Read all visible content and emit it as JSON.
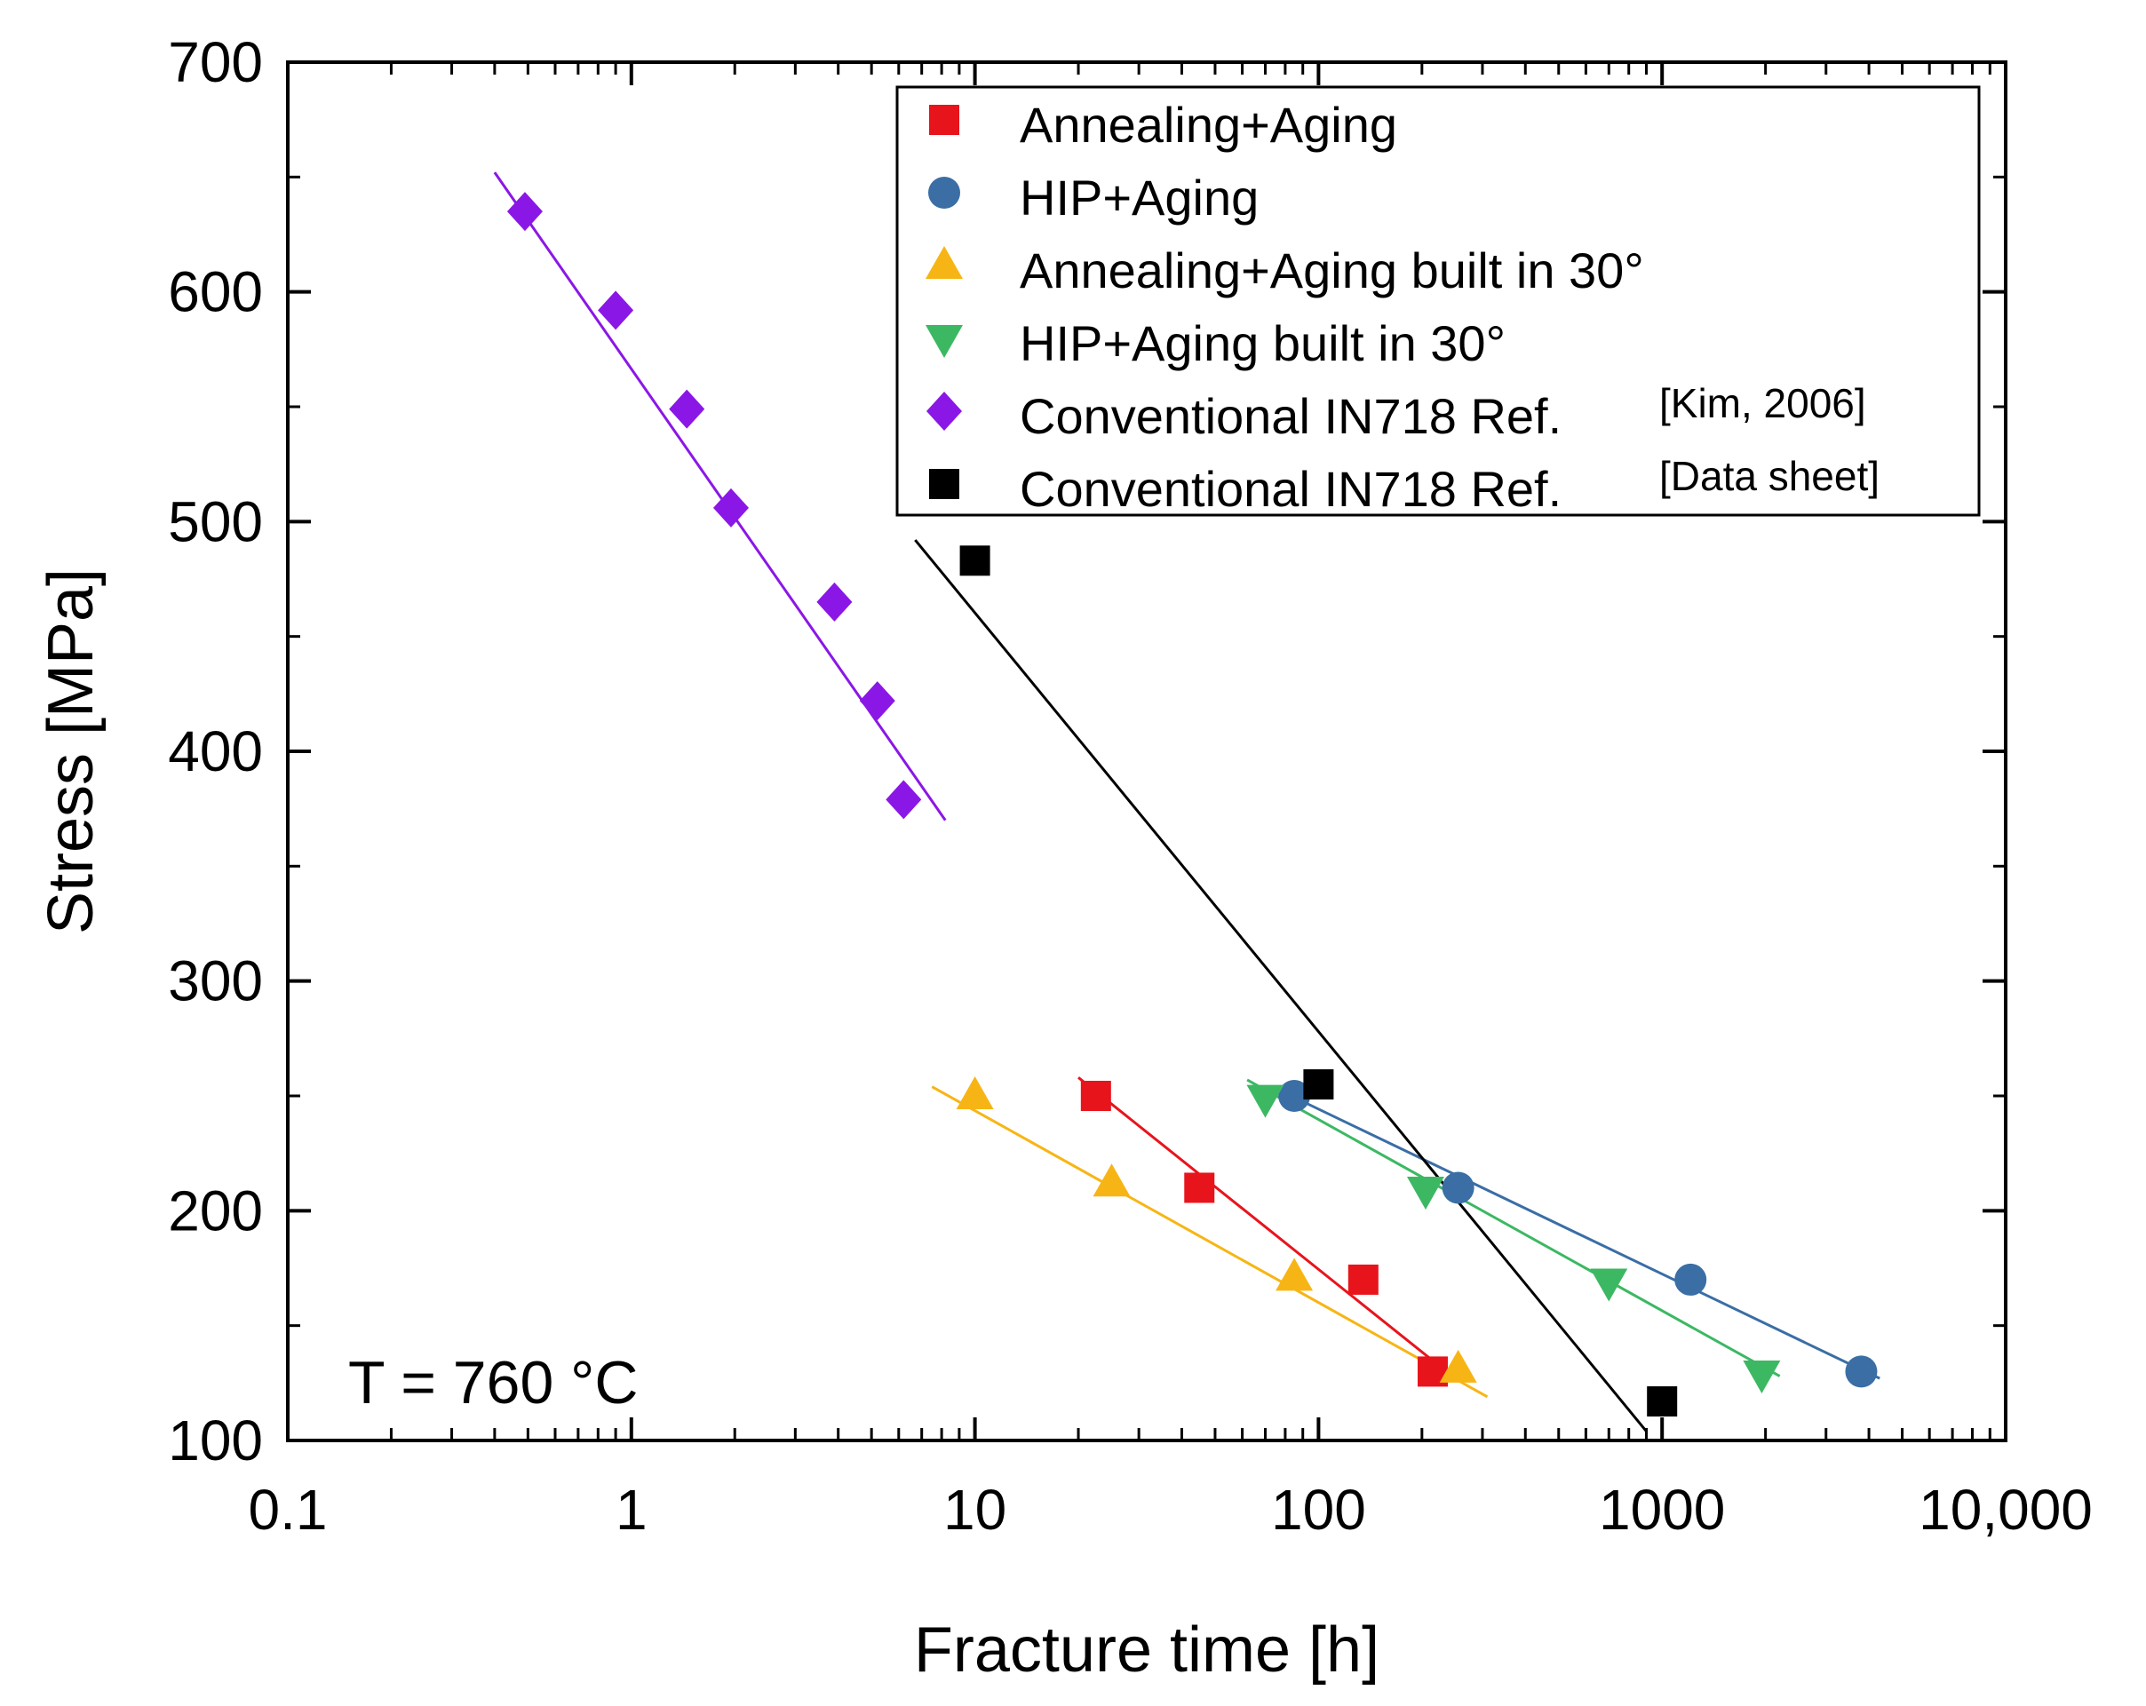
{
  "chart_data": {
    "type": "scatter",
    "xlabel": "Fracture time [h]",
    "ylabel": "Stress [MPa]",
    "xscale": "log",
    "xlim": [
      0.1,
      10000
    ],
    "ylim": [
      100,
      700
    ],
    "xticks": [
      {
        "value": 0.1,
        "label": "0.1"
      },
      {
        "value": 1,
        "label": "1"
      },
      {
        "value": 10,
        "label": "10"
      },
      {
        "value": 100,
        "label": "100"
      },
      {
        "value": 1000,
        "label": "1000"
      },
      {
        "value": 10000,
        "label": "10,000"
      }
    ],
    "yticks": [
      {
        "value": 100,
        "label": "100"
      },
      {
        "value": 200,
        "label": "200"
      },
      {
        "value": 300,
        "label": "300"
      },
      {
        "value": 400,
        "label": "400"
      },
      {
        "value": 500,
        "label": "500"
      },
      {
        "value": 600,
        "label": "600"
      },
      {
        "value": 700,
        "label": "700"
      }
    ],
    "legend_position": "top-right",
    "annotation": "T = 760 °C",
    "series": [
      {
        "name": "Annealing+Aging",
        "marker": "square",
        "color": "#e8141c",
        "points": [
          [
            22.5,
            250
          ],
          [
            45,
            210
          ],
          [
            135,
            170
          ],
          [
            215,
            130
          ]
        ],
        "fit_line": [
          [
            20,
            258
          ],
          [
            245,
            128
          ]
        ]
      },
      {
        "name": "HIP+Aging",
        "marker": "circle",
        "color": "#3a6ea5",
        "points": [
          [
            85,
            250
          ],
          [
            255,
            210
          ],
          [
            1210,
            170
          ],
          [
            3800,
            130
          ]
        ],
        "fit_line": [
          [
            78,
            252
          ],
          [
            4300,
            127
          ]
        ]
      },
      {
        "name": "Annealing+Aging built in 30°",
        "marker": "triangle-up",
        "color": "#f7b515",
        "points": [
          [
            10,
            250
          ],
          [
            25,
            212
          ],
          [
            85,
            171
          ],
          [
            255,
            131
          ]
        ],
        "fit_line": [
          [
            7.5,
            254
          ],
          [
            310,
            119
          ]
        ]
      },
      {
        "name": "HIP+Aging built in 30°",
        "marker": "triangle-down",
        "color": "#3cb863",
        "points": [
          [
            70,
            249
          ],
          [
            205,
            209
          ],
          [
            700,
            169
          ],
          [
            1950,
            129
          ]
        ],
        "fit_line": [
          [
            62,
            257
          ],
          [
            2200,
            128
          ]
        ]
      },
      {
        "name": "Conventional IN718 Ref.",
        "name_suffix": "[Kim, 2006]",
        "marker": "diamond",
        "color": "#8b17e6",
        "points": [
          [
            0.49,
            635
          ],
          [
            0.9,
            592
          ],
          [
            1.45,
            549
          ],
          [
            1.95,
            506
          ],
          [
            3.9,
            465
          ],
          [
            5.2,
            422
          ],
          [
            6.2,
            379
          ]
        ],
        "fit_line": [
          [
            0.4,
            652
          ],
          [
            8.2,
            370
          ]
        ]
      },
      {
        "name": "Conventional IN718 Ref.",
        "name_suffix": "[Data sheet]",
        "marker": "square",
        "color": "#000000",
        "points": [
          [
            10,
            483
          ],
          [
            100,
            255
          ],
          [
            1000,
            117
          ]
        ],
        "fit_line": [
          [
            6.7,
            492
          ],
          [
            900,
            104
          ]
        ]
      }
    ]
  }
}
